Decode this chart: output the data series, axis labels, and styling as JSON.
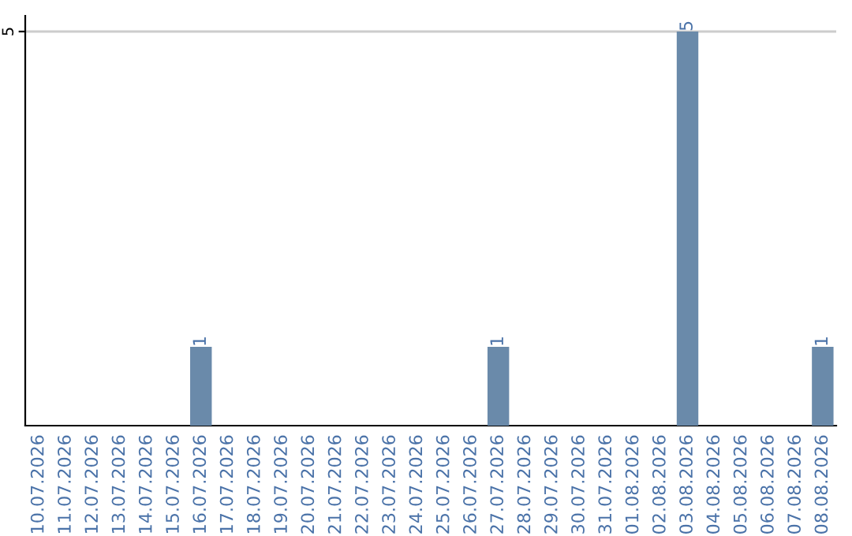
{
  "chart_data": {
    "type": "bar",
    "categories": [
      "10.07.2026",
      "11.07.2026",
      "12.07.2026",
      "13.07.2026",
      "14.07.2026",
      "15.07.2026",
      "16.07.2026",
      "17.07.2026",
      "18.07.2026",
      "19.07.2026",
      "20.07.2026",
      "21.07.2026",
      "22.07.2026",
      "23.07.2026",
      "24.07.2026",
      "25.07.2026",
      "26.07.2026",
      "27.07.2026",
      "28.07.2026",
      "29.07.2026",
      "30.07.2026",
      "31.07.2026",
      "01.08.2026",
      "02.08.2026",
      "03.08.2026",
      "04.08.2026",
      "05.08.2026",
      "06.08.2026",
      "07.08.2026",
      "08.08.2026"
    ],
    "values": [
      0,
      0,
      0,
      0,
      0,
      0,
      1,
      0,
      0,
      0,
      0,
      0,
      0,
      0,
      0,
      0,
      0,
      1,
      0,
      0,
      0,
      0,
      0,
      0,
      5,
      0,
      0,
      0,
      0,
      1
    ],
    "value_labels": [
      null,
      null,
      null,
      null,
      null,
      null,
      "1",
      null,
      null,
      null,
      null,
      null,
      null,
      null,
      null,
      null,
      null,
      "1",
      null,
      null,
      null,
      null,
      null,
      null,
      "5",
      null,
      null,
      null,
      null,
      "1"
    ],
    "color": "#6a8aaa",
    "ylim": [
      0,
      5.2
    ],
    "yticks": [
      5
    ],
    "grid": "y"
  }
}
